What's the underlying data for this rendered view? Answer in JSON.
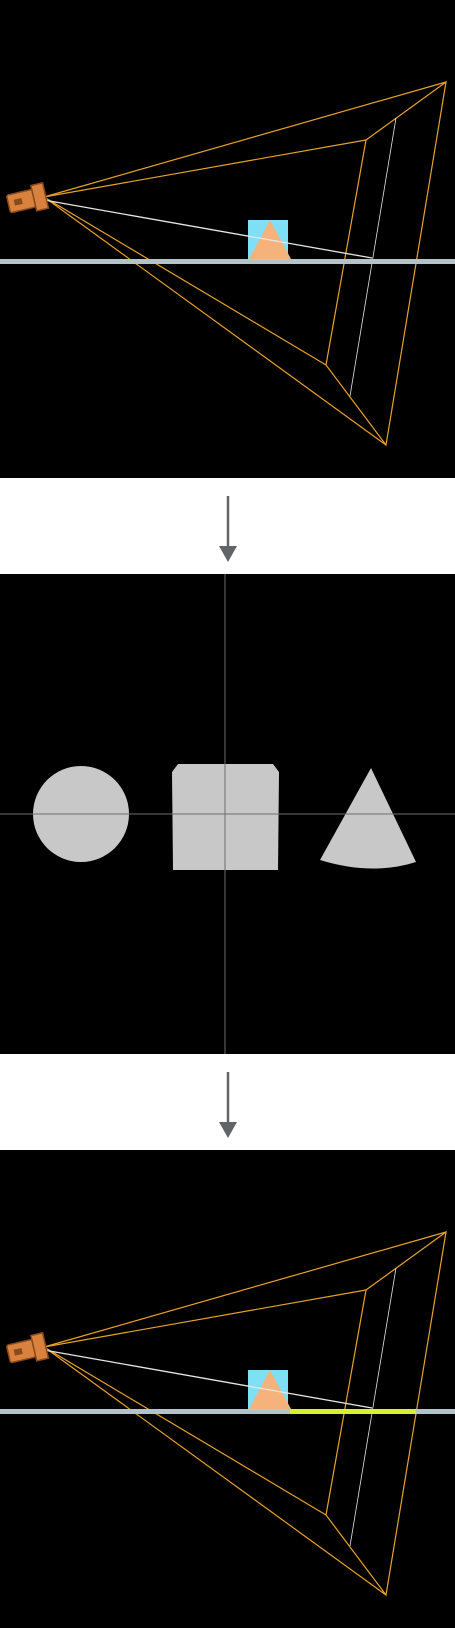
{
  "colors": {
    "panel_background": "#000000",
    "frustum_line": "#e8a22a",
    "ray_line": "#e6e6e6",
    "floor_plane": "#b4c3c7",
    "cube": "#7fdff5",
    "cone_on_floor": "#f5b27a",
    "silhouette_shape": "#c8c8c8",
    "crosshair": "#6e6e6e",
    "arrow": "#5f6569",
    "highlight_edge": "#d7f032",
    "flashlight": "#d9823f",
    "flashlight_outline": "#8a4a1a"
  },
  "panels": [
    {
      "id": "scene-before",
      "icon": "flashlight-icon",
      "highlighted_floor_segment": false
    },
    {
      "id": "depth-silhouettes",
      "shapes": [
        "circle",
        "square",
        "cone"
      ]
    },
    {
      "id": "scene-after",
      "icon": "flashlight-icon",
      "highlighted_floor_segment": true
    }
  ],
  "arrows": [
    "down-arrow-icon",
    "down-arrow-icon"
  ]
}
